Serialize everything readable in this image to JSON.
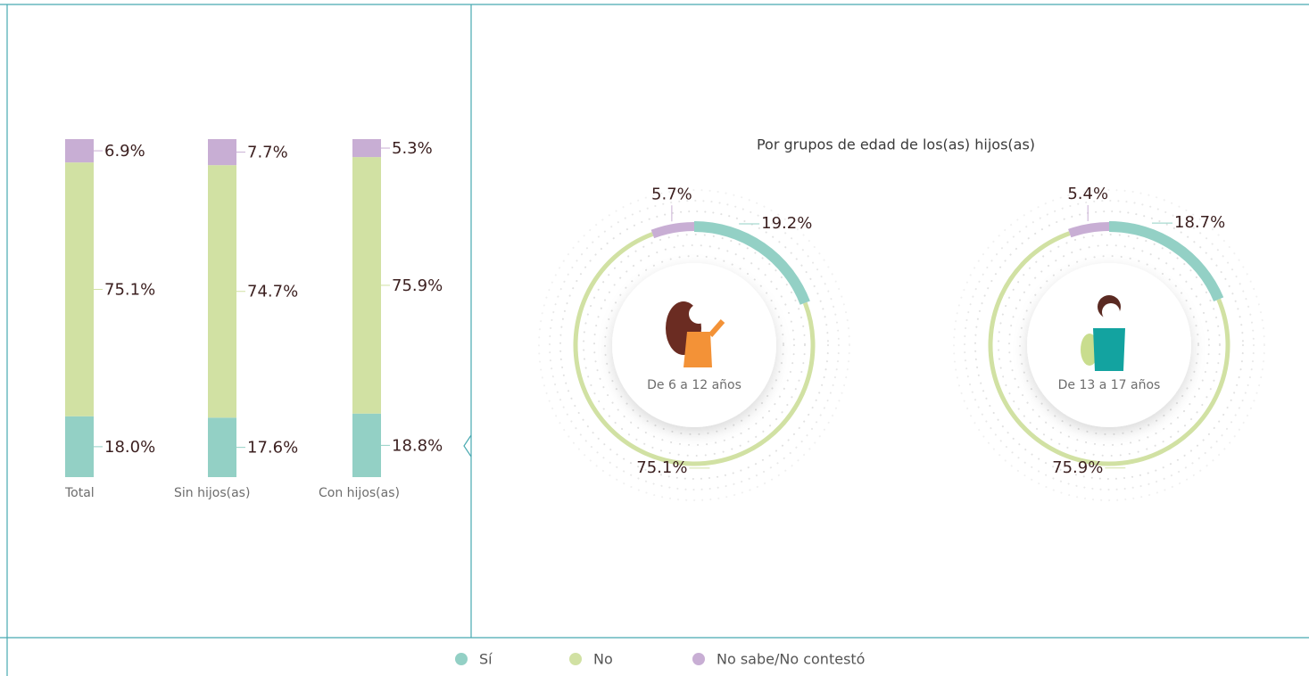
{
  "chart_data": [
    {
      "type": "stacked-bar",
      "categories": [
        "Total",
        "Sin hijos(as)",
        "Con hijos(as)"
      ],
      "series": [
        {
          "name": "Sí",
          "color": "#93d0c5",
          "values": [
            18.0,
            17.6,
            18.8
          ],
          "value_labels": [
            "18.0%",
            "17.6%",
            "18.8%"
          ]
        },
        {
          "name": "No",
          "color": "#d1e1a3",
          "values": [
            75.1,
            74.7,
            75.9
          ],
          "value_labels": [
            "75.1%",
            "74.7%",
            "75.9%"
          ]
        },
        {
          "name": "No sabe/No contestó",
          "color": "#c8aed4",
          "values": [
            6.9,
            7.7,
            5.3
          ],
          "value_labels": [
            "6.9%",
            "7.7%",
            "5.3%"
          ]
        }
      ]
    },
    {
      "type": "donut",
      "title": "Por grupos de edad de los(as) hijos(as)",
      "label": "De 6 a 12 años",
      "colors": [
        "#93d0c5",
        "#d1e1a3",
        "#c8aed4"
      ],
      "values": [
        19.2,
        75.1,
        5.7
      ],
      "value_labels": [
        "19.2%",
        "75.1%",
        "5.7%"
      ]
    },
    {
      "type": "donut",
      "label": "De 13 a 17 años",
      "colors": [
        "#93d0c5",
        "#d1e1a3",
        "#c8aed4"
      ],
      "values": [
        18.7,
        75.9,
        5.4
      ],
      "value_labels": [
        "18.7%",
        "75.9%",
        "5.4%"
      ]
    }
  ]
}
